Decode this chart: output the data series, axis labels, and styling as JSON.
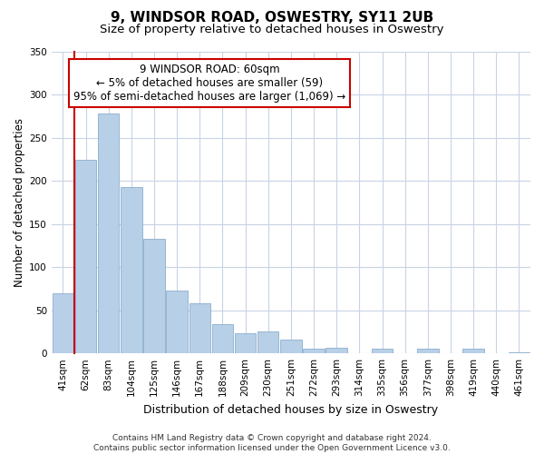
{
  "title": "9, WINDSOR ROAD, OSWESTRY, SY11 2UB",
  "subtitle": "Size of property relative to detached houses in Oswestry",
  "xlabel": "Distribution of detached houses by size in Oswestry",
  "ylabel": "Number of detached properties",
  "bar_labels": [
    "41sqm",
    "62sqm",
    "83sqm",
    "104sqm",
    "125sqm",
    "146sqm",
    "167sqm",
    "188sqm",
    "209sqm",
    "230sqm",
    "251sqm",
    "272sqm",
    "293sqm",
    "314sqm",
    "335sqm",
    "356sqm",
    "377sqm",
    "398sqm",
    "419sqm",
    "440sqm",
    "461sqm"
  ],
  "bar_values": [
    70,
    224,
    278,
    193,
    133,
    73,
    58,
    34,
    23,
    25,
    16,
    5,
    6,
    0,
    5,
    0,
    5,
    0,
    5,
    0,
    1
  ],
  "bar_color": "#b8cfe8",
  "bar_edge_color": "#8aaecc",
  "marker_line_color": "#cc0000",
  "annotation_text": "9 WINDSOR ROAD: 60sqm\n← 5% of detached houses are smaller (59)\n95% of semi-detached houses are larger (1,069) →",
  "annotation_box_color": "#ffffff",
  "annotation_box_edge_color": "#cc0000",
  "ylim": [
    0,
    350
  ],
  "yticks": [
    0,
    50,
    100,
    150,
    200,
    250,
    300,
    350
  ],
  "footer_line1": "Contains HM Land Registry data © Crown copyright and database right 2024.",
  "footer_line2": "Contains public sector information licensed under the Open Government Licence v3.0.",
  "background_color": "#ffffff",
  "grid_color": "#c8d4e4",
  "title_fontsize": 11,
  "subtitle_fontsize": 9.5,
  "xlabel_fontsize": 9,
  "ylabel_fontsize": 8.5,
  "tick_fontsize": 7.5,
  "annotation_fontsize": 8.5,
  "footer_fontsize": 6.5
}
